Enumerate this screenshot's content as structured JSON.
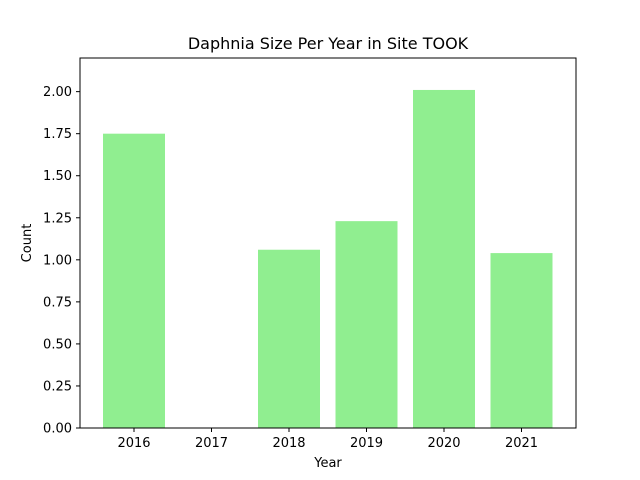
{
  "chart_data": {
    "type": "bar",
    "title": "Daphnia Size Per Year in Site TOOK",
    "xlabel": "Year",
    "ylabel": "Count",
    "categories": [
      "2016",
      "2017",
      "2018",
      "2019",
      "2020",
      "2021"
    ],
    "values": [
      1.75,
      0,
      1.06,
      1.23,
      2.01,
      1.04
    ],
    "ylim": [
      0,
      2.2
    ],
    "yticks": [
      0.0,
      0.25,
      0.5,
      0.75,
      1.0,
      1.25,
      1.5,
      1.75,
      2.0
    ],
    "ytick_labels": [
      "0.00",
      "0.25",
      "0.50",
      "0.75",
      "1.00",
      "1.25",
      "1.50",
      "1.75",
      "2.00"
    ],
    "grid": false,
    "bar_color": "#90ee90"
  }
}
